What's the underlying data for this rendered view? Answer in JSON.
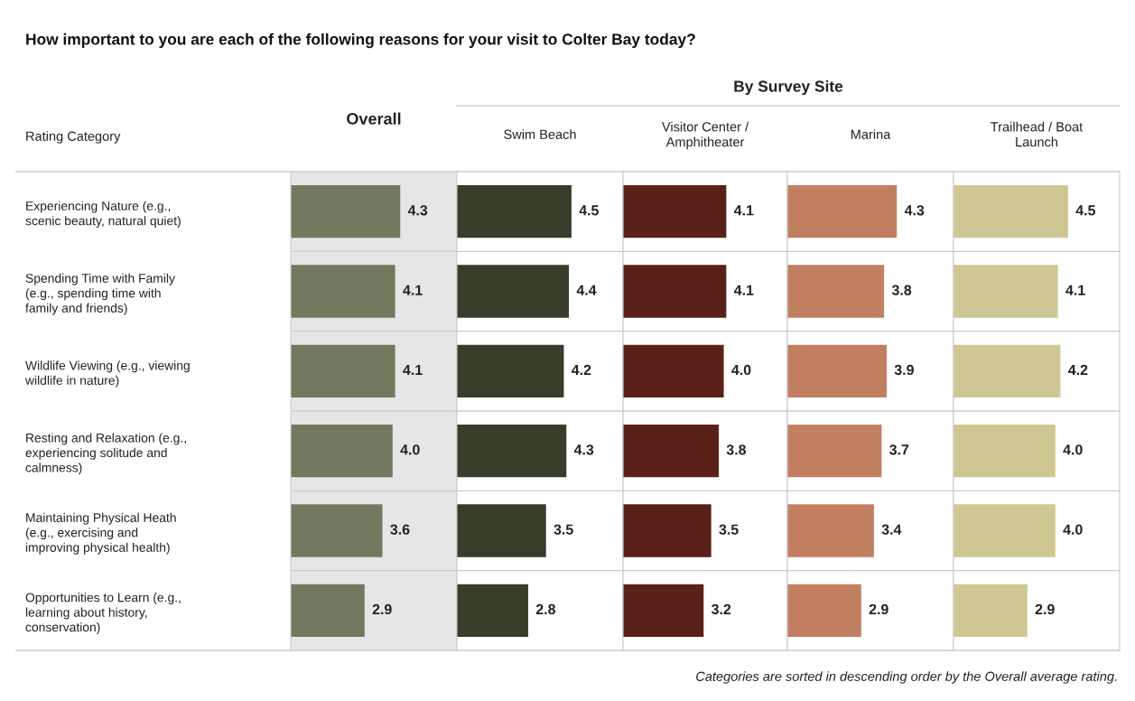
{
  "chart_data": [
    {
      "type": "bar",
      "orientation": "horizontal",
      "title": "Overall",
      "ylabel": "Rating Category",
      "tick_labels": "y",
      "categories": [
        "Experiencing Nature (e.g.,\nscenic beauty, natural quiet)",
        "Spending Time with Family\n(e.g., spending time with\nfamily and friends)",
        "Wildlife Viewing (e.g., viewing\nwildlife in nature)",
        "Resting and Relaxation (e.g.,\nexperiencing solitude and\ncalmness)",
        "Maintaining Physical Heath\n(e.g., exercising and\nimproving physical health)",
        "Opportunities to Learn (e.g.,\nlearning about history,\nconservation)"
      ],
      "annotations": [
        "How important to you are each of the following reasons for your visit to Colter Bay today?",
        "Categories are sorted in descending order by the Overall average rating."
      ],
      "series": [
        {
          "color": "#717a5f",
          "values": [
            4.3,
            4.1,
            4.1,
            4.0,
            3.6,
            2.9
          ],
          "value_labels": [
            "4.3",
            "4.1",
            "4.1",
            "4.0",
            "3.6",
            "2.9"
          ]
        }
      ]
    },
    {
      "type": "bar",
      "orientation": "horizontal",
      "title": "Swim Beach",
      "tick_labels": false,
      "categories": [
        null,
        null,
        null,
        null,
        null,
        null
      ],
      "annotations": [
        "By Survey Site"
      ],
      "series": [
        {
          "color": "#363d2b",
          "values": [
            4.5,
            4.4,
            4.2,
            4.3,
            3.5,
            2.8
          ],
          "value_labels": [
            "4.5",
            "4.4",
            "4.2",
            "4.3",
            "3.5",
            "2.8"
          ]
        }
      ]
    },
    {
      "type": "bar",
      "orientation": "horizontal",
      "title": "Visitor Center /\nAmphitheater",
      "tick_labels": false,
      "categories": [
        null,
        null,
        null,
        null,
        null,
        null
      ],
      "series": [
        {
          "color": "#5a2118",
          "values": [
            4.1,
            4.1,
            4.0,
            3.8,
            3.5,
            3.2
          ],
          "value_labels": [
            "4.1",
            "4.1",
            "4.0",
            "3.8",
            "3.5",
            "3.2"
          ]
        }
      ]
    },
    {
      "type": "bar",
      "orientation": "horizontal",
      "title": "Marina",
      "tick_labels": false,
      "categories": [
        null,
        null,
        null,
        null,
        null,
        null
      ],
      "series": [
        {
          "color": "#c17f62",
          "values": [
            4.3,
            3.8,
            3.9,
            3.7,
            3.4,
            2.9
          ],
          "value_labels": [
            "4.3",
            "3.8",
            "3.9",
            "3.7",
            "3.4",
            "2.9"
          ]
        }
      ]
    },
    {
      "type": "bar",
      "orientation": "horizontal",
      "title": "Trailhead / Boat\nLaunch",
      "tick_labels": false,
      "categories": [
        null,
        null,
        null,
        null,
        null,
        null
      ],
      "series": [
        {
          "color": "#cfc793",
          "values": [
            4.5,
            4.1,
            4.2,
            4.0,
            4.0,
            2.9
          ],
          "value_labels": [
            "4.5",
            "4.1",
            "4.2",
            "4.0",
            "4.0",
            "2.9"
          ]
        }
      ]
    }
  ]
}
